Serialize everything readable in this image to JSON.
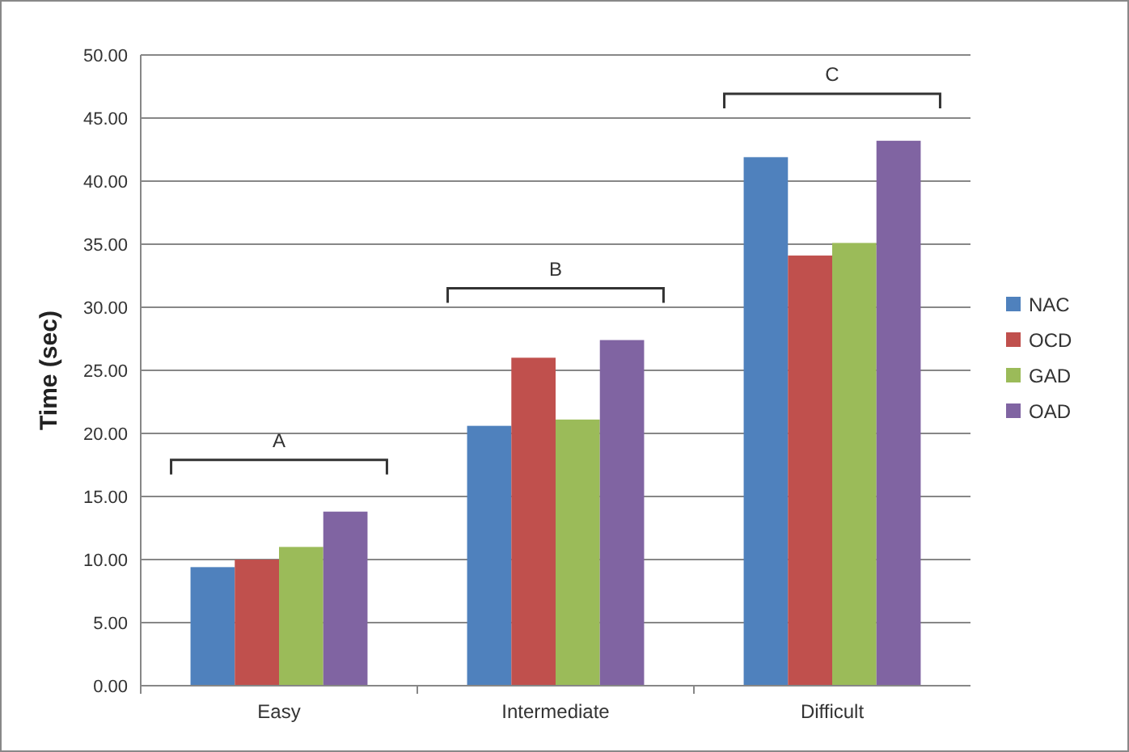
{
  "chart_data": {
    "type": "bar",
    "ylabel": "Time (sec)",
    "categories": [
      "Easy",
      "Intermediate",
      "Difficult"
    ],
    "series": [
      {
        "name": "NAC",
        "color": "#4f81bd",
        "values": [
          9.4,
          20.6,
          41.9
        ]
      },
      {
        "name": "OCD",
        "color": "#c0504d",
        "values": [
          10.0,
          26.0,
          34.1
        ]
      },
      {
        "name": "GAD",
        "color": "#9bbb59",
        "values": [
          11.0,
          21.1,
          35.1
        ]
      },
      {
        "name": "OAD",
        "color": "#8064a2",
        "values": [
          13.8,
          27.4,
          43.2
        ]
      }
    ],
    "ylim": [
      0,
      50
    ],
    "yticks": [
      {
        "value": 0,
        "label": "0.00"
      },
      {
        "value": 5,
        "label": "5.00"
      },
      {
        "value": 10,
        "label": "10.00"
      },
      {
        "value": 15,
        "label": "15.00"
      },
      {
        "value": 20,
        "label": "20.00"
      },
      {
        "value": 25,
        "label": "25.00"
      },
      {
        "value": 30,
        "label": "30.00"
      },
      {
        "value": 35,
        "label": "35.00"
      },
      {
        "value": 40,
        "label": "40.00"
      },
      {
        "value": 45,
        "label": "45.00"
      },
      {
        "value": 50,
        "label": "50.00"
      }
    ],
    "grid": "y",
    "legend": "right",
    "annotations": [
      "A",
      "B",
      "C"
    ]
  }
}
